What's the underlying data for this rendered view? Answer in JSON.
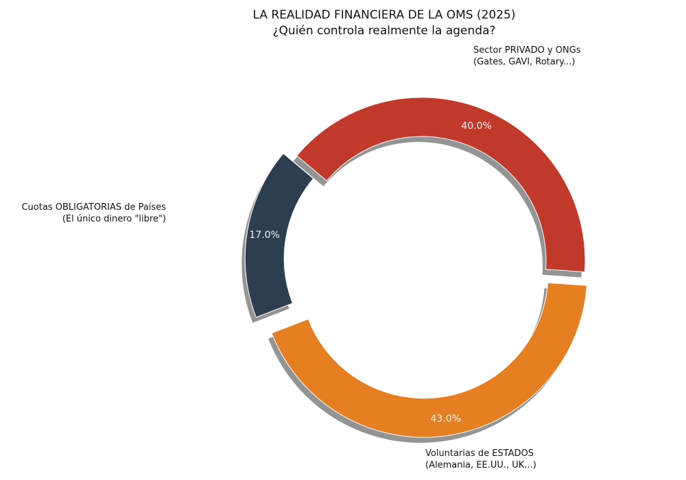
{
  "chart_data": {
    "type": "pie",
    "style": "donut",
    "title": "LA REALIDAD FINANCIERA DE LA OMS (2025)",
    "subtitle": "¿Quién controla realmente la agenda?",
    "start_angle_deg": 140,
    "direction": "counterclockwise",
    "slices": [
      {
        "name": "cuotas",
        "label_line1": "Cuotas OBLIGATORIAS de Países",
        "label_line2": "(El único dinero \"libre\")",
        "value": 17.0,
        "pct_label": "17.0%",
        "color": "#2c3e50",
        "exploded": true
      },
      {
        "name": "estados",
        "label_line1": "Voluntarias de ESTADOS",
        "label_line2": "(Alemania, EE.UU., UK...)",
        "value": 43.0,
        "pct_label": "43.0%",
        "color": "#e67e22",
        "exploded": true
      },
      {
        "name": "privado",
        "label_line1": "Sector PRIVADO y ONGs",
        "label_line2": "(Gates, GAVI, Rotary...)",
        "value": 40.0,
        "pct_label": "40.0%",
        "color": "#c0392b",
        "exploded": false
      }
    ],
    "shadow": true
  }
}
